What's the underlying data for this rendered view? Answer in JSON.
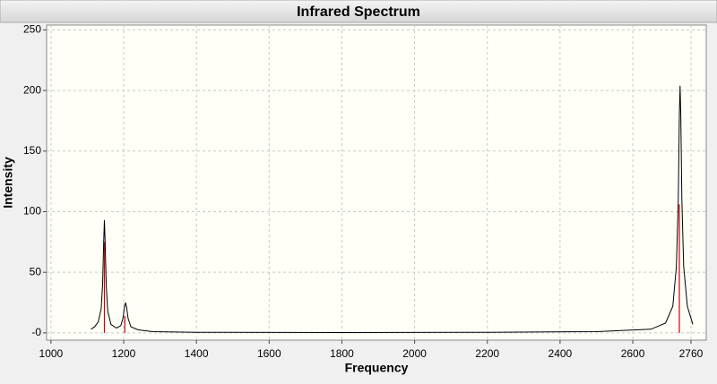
{
  "chart_data": {
    "type": "line",
    "title": "Infrared Spectrum",
    "xlabel": "Frequency",
    "ylabel": "Intensity",
    "x": [
      1110,
      1120,
      1130,
      1138,
      1142,
      1145,
      1147,
      1149,
      1152,
      1156,
      1165,
      1180,
      1192,
      1198,
      1202,
      1205,
      1208,
      1212,
      1220,
      1240,
      1280,
      1400,
      1800,
      2200,
      2500,
      2650,
      2690,
      2710,
      2720,
      2725,
      2728,
      2730,
      2732,
      2735,
      2740,
      2750,
      2765
    ],
    "values": [
      3,
      5,
      9,
      20,
      40,
      75,
      93,
      75,
      40,
      18,
      7,
      4,
      6,
      12,
      21,
      25,
      21,
      12,
      5,
      2.5,
      1,
      0.5,
      0.3,
      0.5,
      1,
      3,
      8,
      22,
      55,
      110,
      180,
      204,
      180,
      110,
      55,
      22,
      7
    ],
    "color": "#000000",
    "sticks": {
      "x": [
        1147,
        1203,
        2728
      ],
      "values": [
        75,
        14,
        106
      ],
      "color": "#cc0000"
    },
    "xlim": [
      988,
      2802
    ],
    "ylim": [
      -6,
      254
    ],
    "xticks": [
      1000,
      1200,
      1400,
      1600,
      1800,
      2000,
      2200,
      2400,
      2600,
      2760
    ],
    "yticks": [
      {
        "value": 0,
        "label": "-0"
      },
      50,
      100,
      150,
      200,
      250
    ],
    "grid": true
  }
}
